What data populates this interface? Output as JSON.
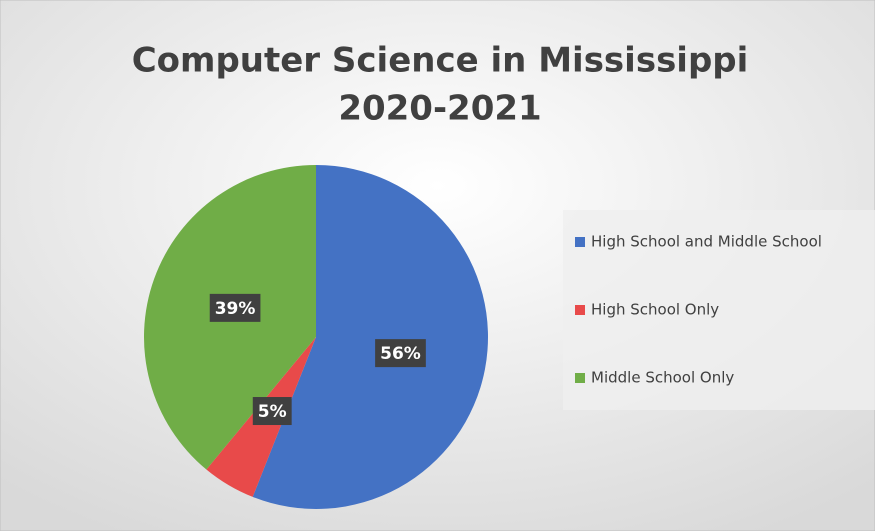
{
  "chart_data": {
    "type": "pie",
    "title": [
      "Computer Science in Mississippi",
      "2020-2021"
    ],
    "categories": [
      "High School and Middle School",
      "High School Only",
      "Middle School Only"
    ],
    "values": [
      56,
      5,
      39
    ],
    "value_labels": [
      "56%",
      "5%",
      "39%"
    ],
    "colors": [
      "#4472c4",
      "#e84a4a",
      "#70ad47"
    ],
    "legend": "right"
  }
}
